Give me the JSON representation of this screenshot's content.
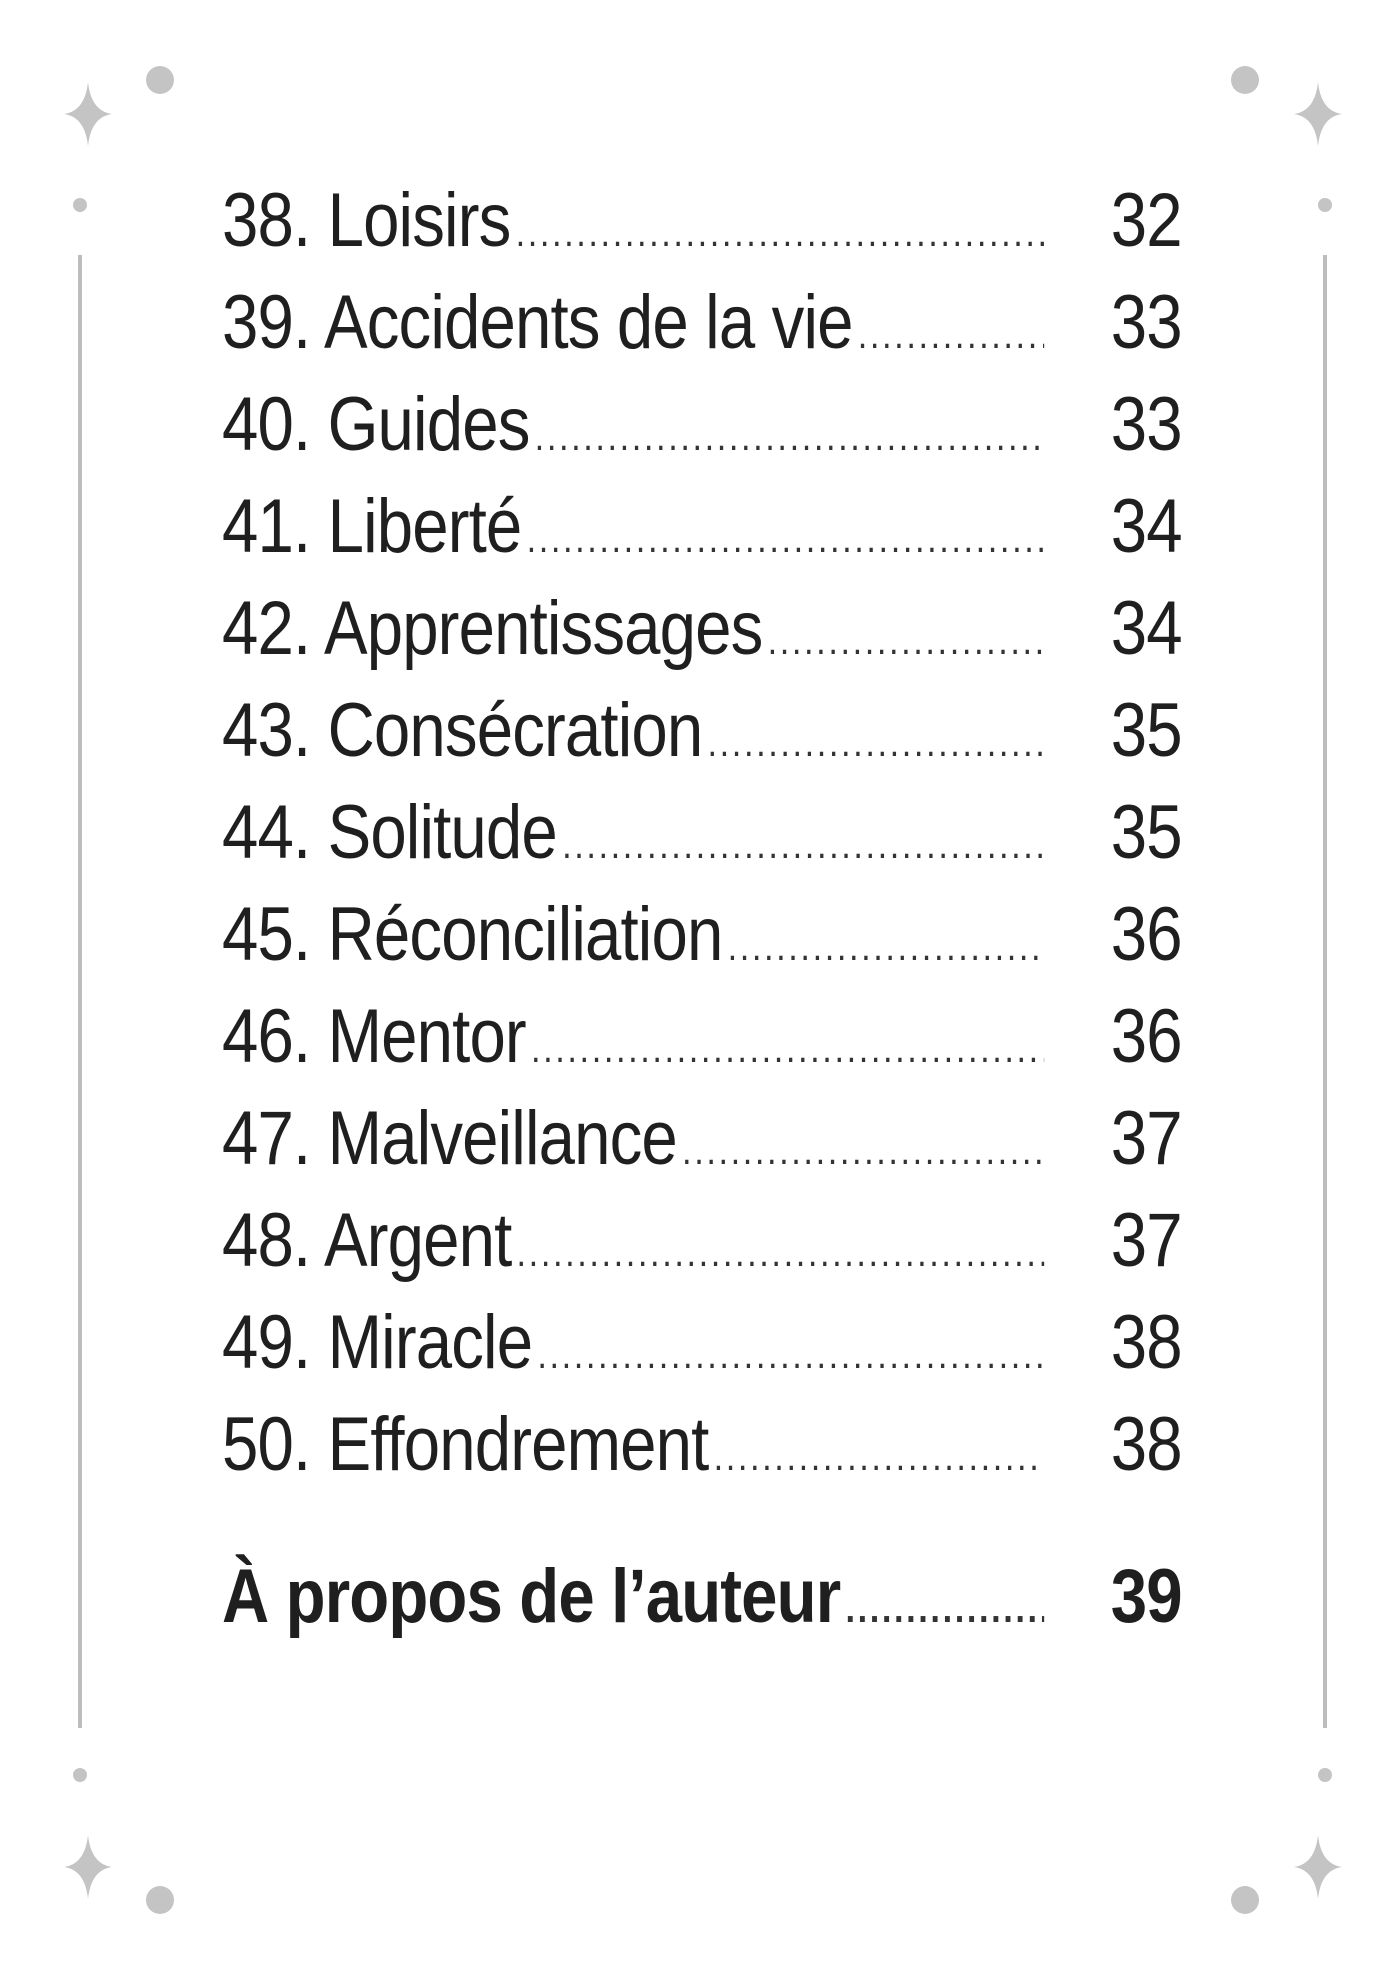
{
  "toc": {
    "entries": [
      {
        "label": "38. Loisirs",
        "page": "32"
      },
      {
        "label": "39. Accidents de la vie",
        "page": "33"
      },
      {
        "label": "40. Guides",
        "page": "33"
      },
      {
        "label": "41. Liberté",
        "page": "34"
      },
      {
        "label": "42. Apprentissages",
        "page": "34"
      },
      {
        "label": "43. Consécration",
        "page": "35"
      },
      {
        "label": "44. Solitude",
        "page": "35"
      },
      {
        "label": "45. Réconciliation",
        "page": "36"
      },
      {
        "label": "46. Mentor",
        "page": "36"
      },
      {
        "label": "47. Malveillance",
        "page": "37"
      },
      {
        "label": "48. Argent",
        "page": "37"
      },
      {
        "label": "49. Miracle",
        "page": "38"
      },
      {
        "label": "50. Effondrement",
        "page": "38"
      }
    ],
    "author": {
      "label": "À propos de l’auteur",
      "page": "39"
    }
  },
  "colors": {
    "text": "#1f1f1f",
    "ornament": "#c4c4c4",
    "frame_line": "#bdbdbd"
  }
}
